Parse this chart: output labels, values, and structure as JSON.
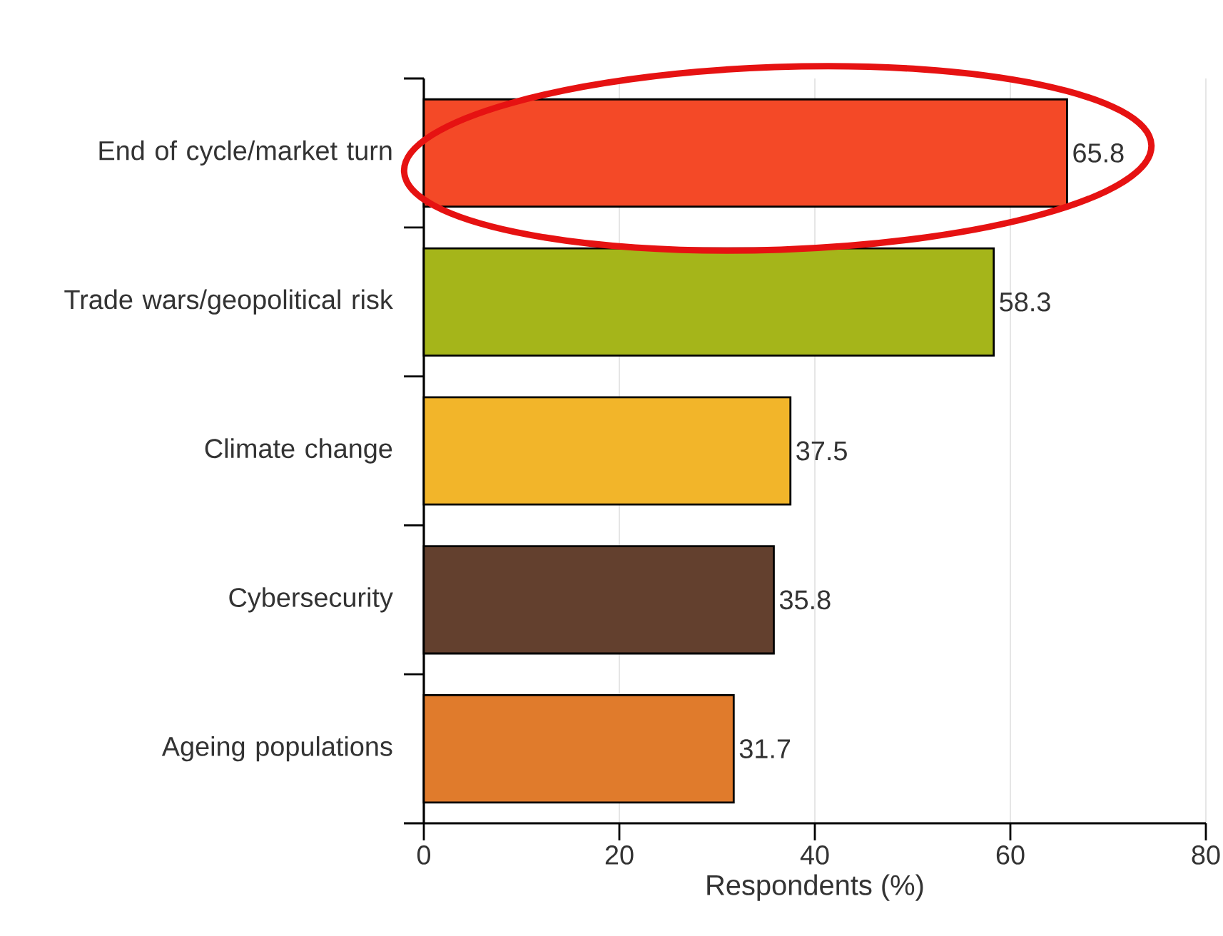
{
  "chart_data": {
    "type": "bar",
    "orientation": "horizontal",
    "categories": [
      "End of cycle/market turn",
      "Trade wars/geopolitical risk",
      "Climate change",
      "Cybersecurity",
      "Ageing populations"
    ],
    "values": [
      65.8,
      58.3,
      37.5,
      35.8,
      31.7
    ],
    "colors": [
      "#f44927",
      "#a5b51a",
      "#f2b52a",
      "#63402e",
      "#e07b2c"
    ],
    "xlabel": "Respondents (%)",
    "xlim": [
      0,
      80
    ],
    "xticks": [
      0,
      20,
      40,
      60,
      80
    ],
    "grid": "x",
    "data_labels": true
  }
}
